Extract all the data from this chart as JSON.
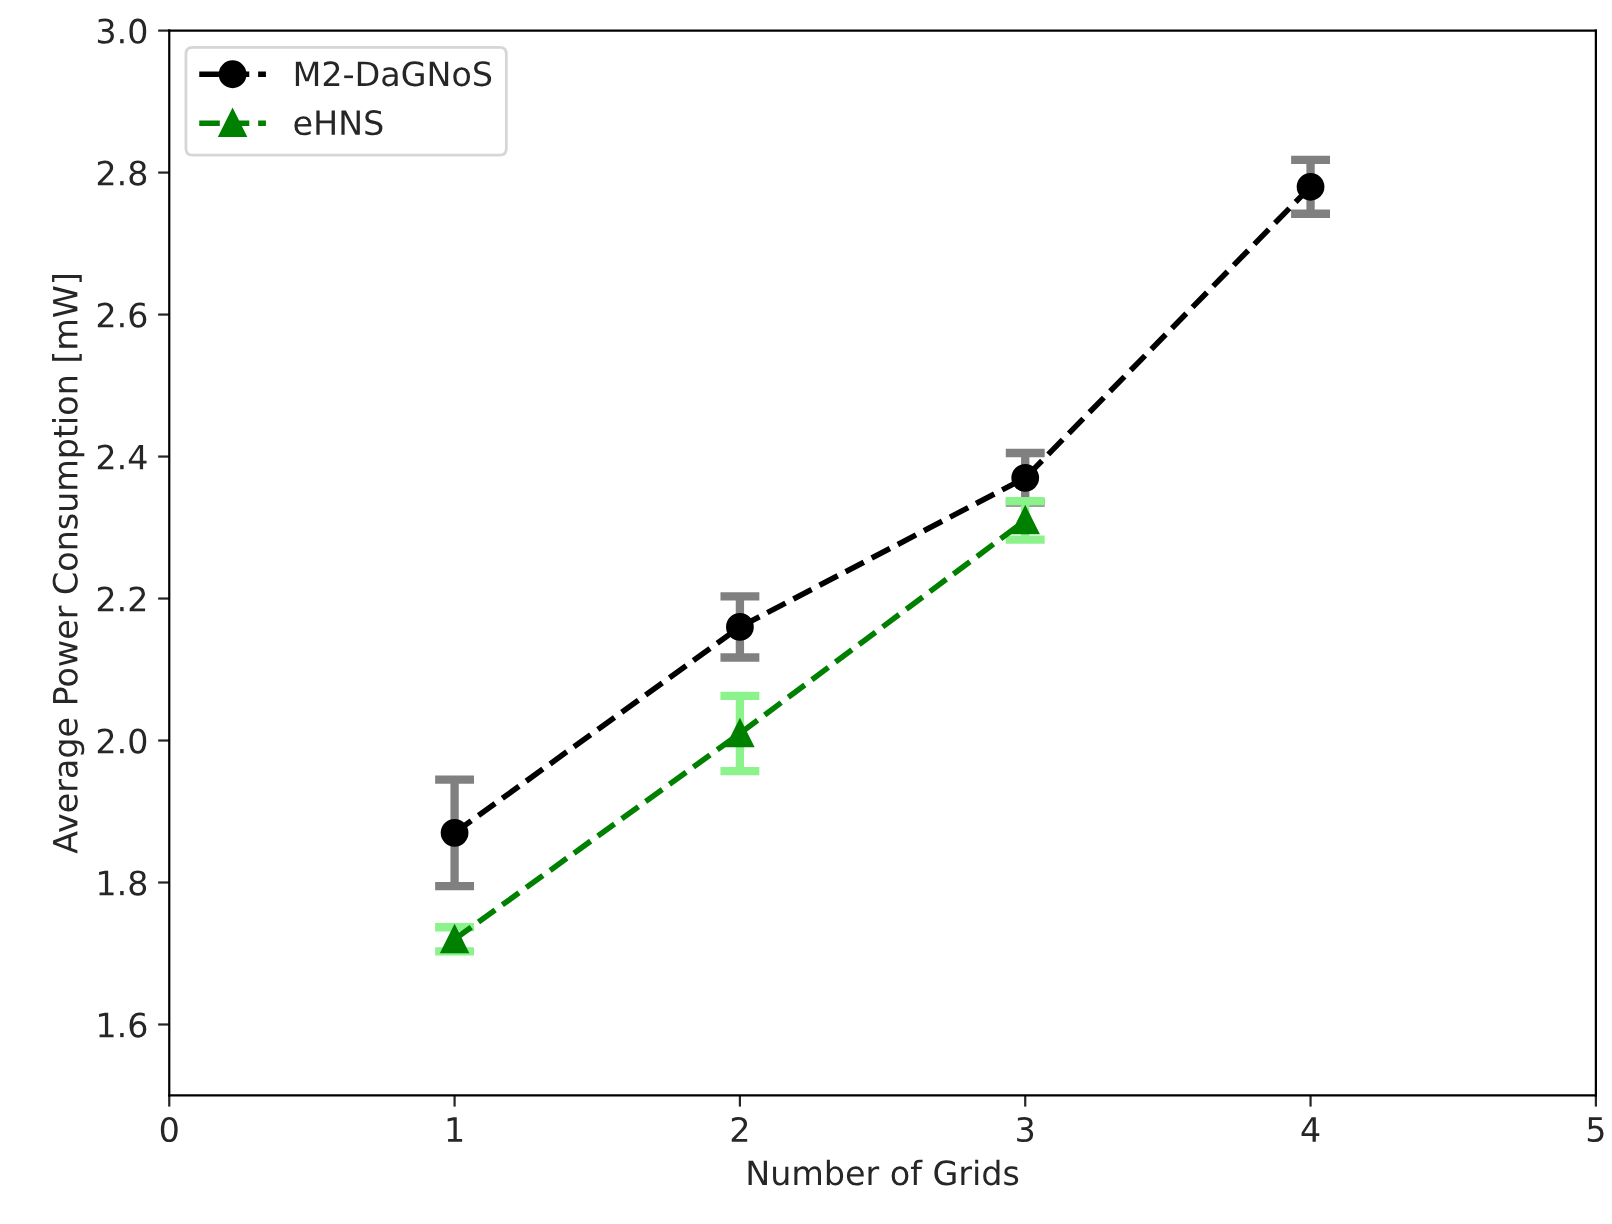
{
  "chart_data": {
    "type": "line",
    "xlabel": "Number of Grids",
    "ylabel": "Average Power Consumption [mW]",
    "x": [
      1,
      2,
      3,
      4
    ],
    "series": [
      {
        "name": "M2-DaGNoS",
        "color": "#000000",
        "marker": "circle",
        "values": [
          1.87,
          2.16,
          2.37,
          2.78
        ],
        "errors": [
          0.075,
          0.043,
          0.035,
          0.038
        ]
      },
      {
        "name": "eHNS",
        "color": "#008000",
        "marker": "triangle",
        "x": [
          1,
          2,
          3
        ],
        "values": [
          1.72,
          2.01,
          2.31
        ],
        "errors": [
          0.017,
          0.053,
          0.027
        ]
      }
    ],
    "xlim": [
      0,
      5
    ],
    "xticks": [
      0,
      1,
      2,
      3,
      4,
      5
    ],
    "ylim": [
      1.5,
      3.0
    ],
    "yticks": [
      {
        "value": 1.6,
        "label": "1.6"
      },
      {
        "value": 1.8,
        "label": "1.8"
      },
      {
        "value": 2.0,
        "label": "2.0"
      },
      {
        "value": 2.2,
        "label": "2.2"
      },
      {
        "value": 2.4,
        "label": "2.4"
      },
      {
        "value": 2.6,
        "label": "2.6"
      },
      {
        "value": 2.8,
        "label": "2.8"
      },
      {
        "value": 3.0,
        "label": "3.0"
      }
    ],
    "line_style": "dashed",
    "legend": "top left",
    "grid": false
  }
}
